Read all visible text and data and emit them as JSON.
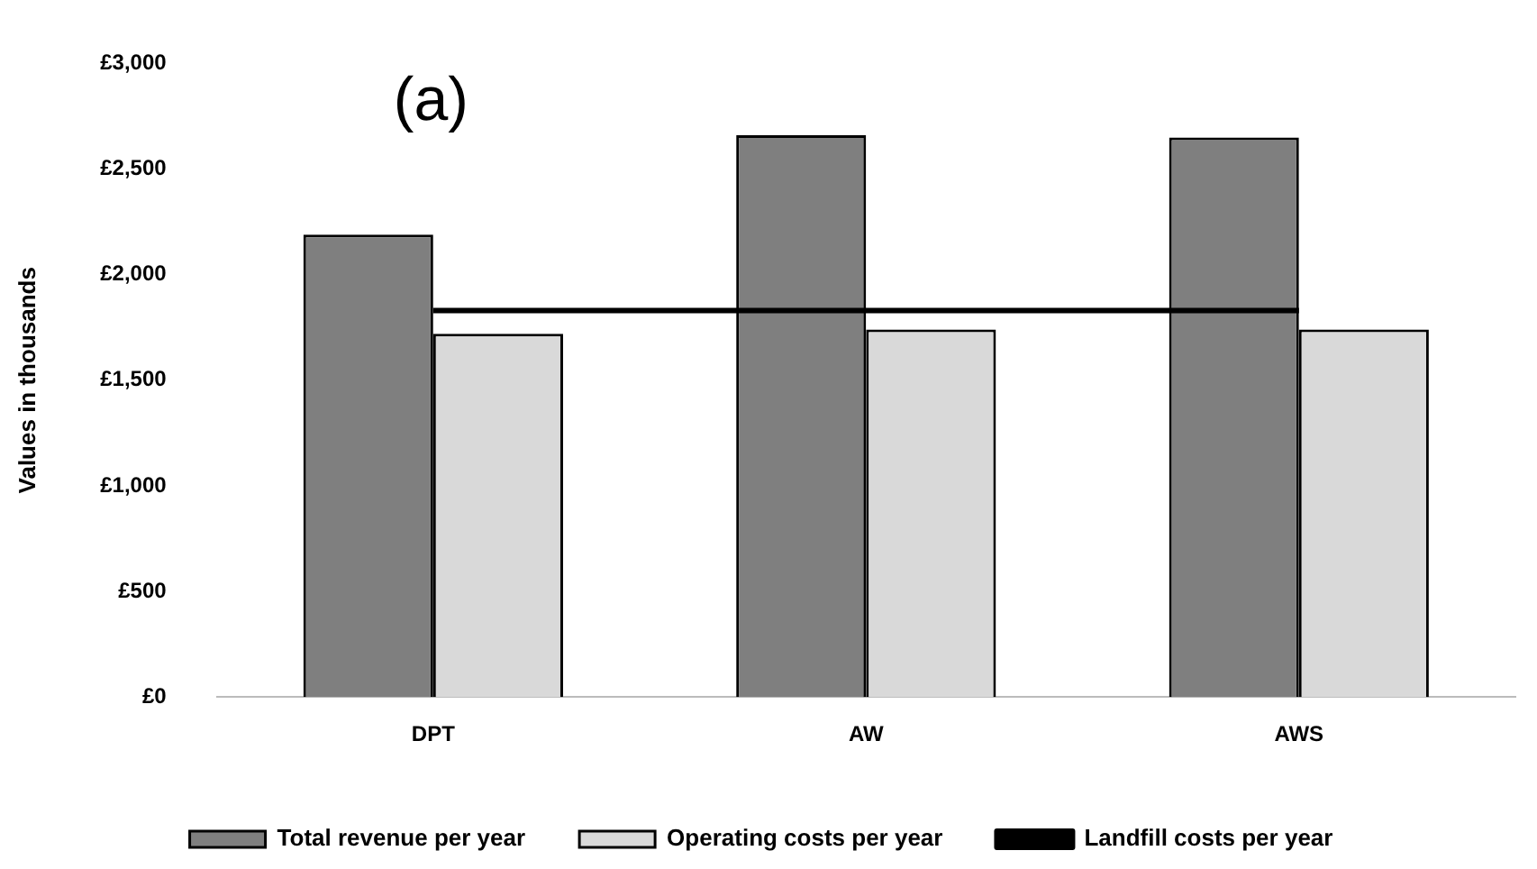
{
  "chart_data": {
    "type": "bar",
    "title": "(a)",
    "ylabel": "Values in thousands",
    "categories": [
      "DPT",
      "AW",
      "AWS"
    ],
    "series": [
      {
        "name": "Total revenue per year",
        "color": "#7f7f7f",
        "values": [
          2190,
          2660,
          2650
        ]
      },
      {
        "name": "Operating costs per year",
        "color": "#d9d9d9",
        "values": [
          1720,
          1740,
          1740
        ]
      },
      {
        "name": "Landfill costs per year",
        "type": "line",
        "color": "#000000",
        "values": [
          1830,
          1830,
          1830
        ]
      }
    ],
    "ylim": [
      0,
      3000
    ],
    "yticks": [
      {
        "value": 0,
        "label": "£0"
      },
      {
        "value": 500,
        "label": "£500"
      },
      {
        "value": 1000,
        "label": "£1,000"
      },
      {
        "value": 1500,
        "label": "£1,500"
      },
      {
        "value": 2000,
        "label": "£2,000"
      },
      {
        "value": 2500,
        "label": "£2,500"
      },
      {
        "value": 3000,
        "label": "£3,000"
      }
    ],
    "grid": false,
    "legend": "bottom"
  }
}
